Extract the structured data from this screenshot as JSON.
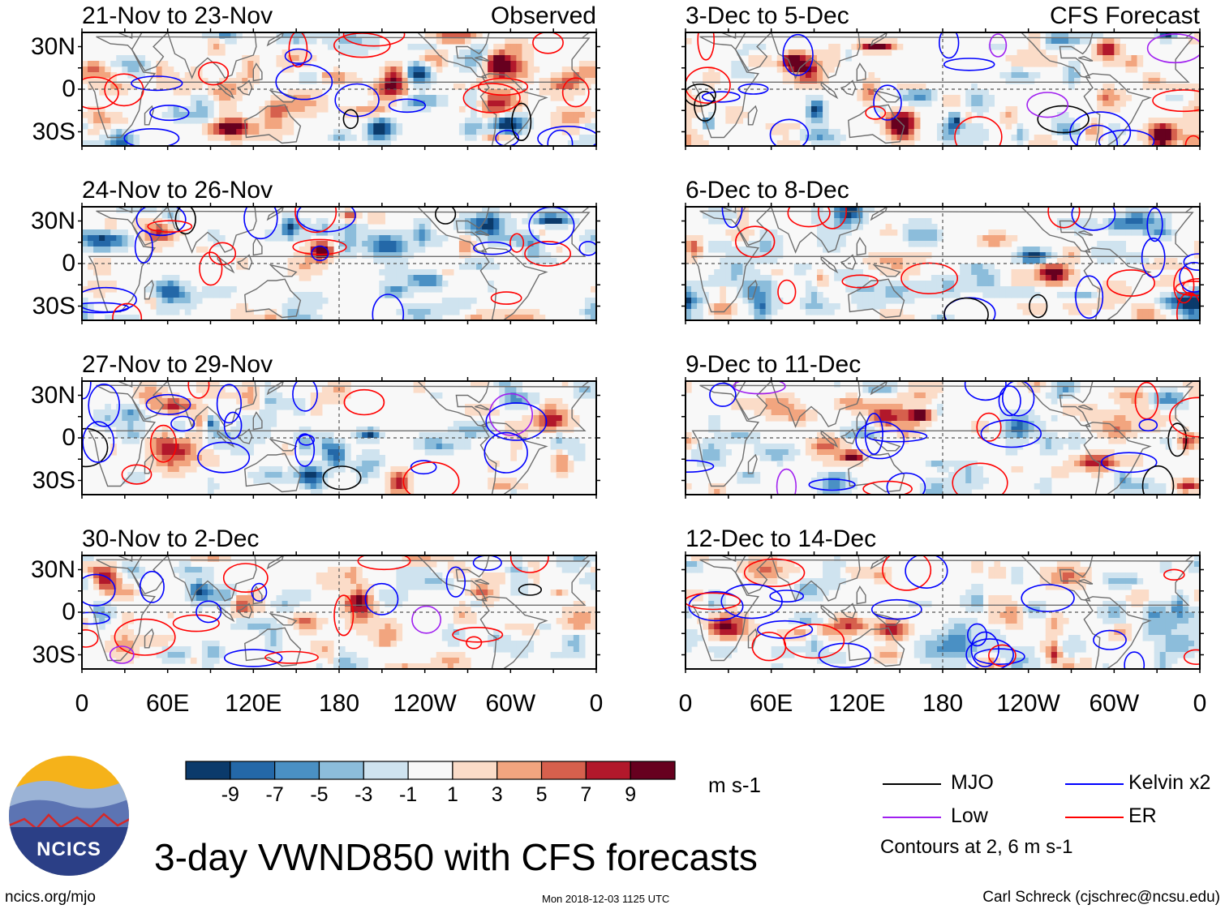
{
  "figure": {
    "main_title": "3-day VWND850 with CFS forecasts",
    "units": "m s-1",
    "footer_left": "ncics.org/mjo",
    "footer_timestamp": "Mon 2018-12-03 1125 UTC",
    "footer_credit": "Carl Schreck (cjschrec@ncsu.edu)",
    "logo_text": "NCICS",
    "contour_note": "Contours at 2, 6 m s-1"
  },
  "chart_data": {
    "type": "heatmap",
    "variable": "850-hPa meridional wind anomaly",
    "x_ticks": [
      "0",
      "60E",
      "120E",
      "180",
      "120W",
      "60W",
      "0"
    ],
    "x_range": [
      0,
      360
    ],
    "y_ticks": [
      "30N",
      "0",
      "30S"
    ],
    "y_range": [
      -40,
      40
    ],
    "panels": [
      {
        "title": "21-Nov to 23-Nov",
        "tag": "Observed",
        "column": "left",
        "row": 0,
        "seed": 11
      },
      {
        "title": "24-Nov to 26-Nov",
        "tag": "",
        "column": "left",
        "row": 1,
        "seed": 23
      },
      {
        "title": "27-Nov to 29-Nov",
        "tag": "",
        "column": "left",
        "row": 2,
        "seed": 37
      },
      {
        "title": "30-Nov to 2-Dec",
        "tag": "",
        "column": "left",
        "row": 3,
        "seed": 41
      },
      {
        "title": "3-Dec to 5-Dec",
        "tag": "CFS Forecast",
        "column": "right",
        "row": 0,
        "seed": 53
      },
      {
        "title": "6-Dec to 8-Dec",
        "tag": "",
        "column": "right",
        "row": 1,
        "seed": 67
      },
      {
        "title": "9-Dec to 11-Dec",
        "tag": "",
        "column": "right",
        "row": 2,
        "seed": 71
      },
      {
        "title": "12-Dec to 14-Dec",
        "tag": "",
        "column": "right",
        "row": 3,
        "seed": 89
      }
    ],
    "colorbar": {
      "bins": [
        -11,
        -9,
        -7,
        -5,
        -3,
        -1,
        1,
        3,
        5,
        7,
        9,
        11
      ],
      "tick_labels": [
        "-9",
        "-7",
        "-5",
        "-3",
        "-1",
        "1",
        "3",
        "5",
        "7",
        "9"
      ],
      "colors": [
        "#0b3a6b",
        "#2468a8",
        "#4a90c4",
        "#8cbddb",
        "#cfe3ef",
        "#f8f8f8",
        "#fbdcc8",
        "#f2a57f",
        "#d6604d",
        "#b2182b",
        "#67001f"
      ]
    },
    "legend": [
      {
        "label": "MJO",
        "color": "#000000"
      },
      {
        "label": "Kelvin x2",
        "color": "#0000ff"
      },
      {
        "label": "Low",
        "color": "#a020f0"
      },
      {
        "label": "ER",
        "color": "#ff0000"
      }
    ],
    "contour_levels": [
      2,
      6
    ]
  }
}
